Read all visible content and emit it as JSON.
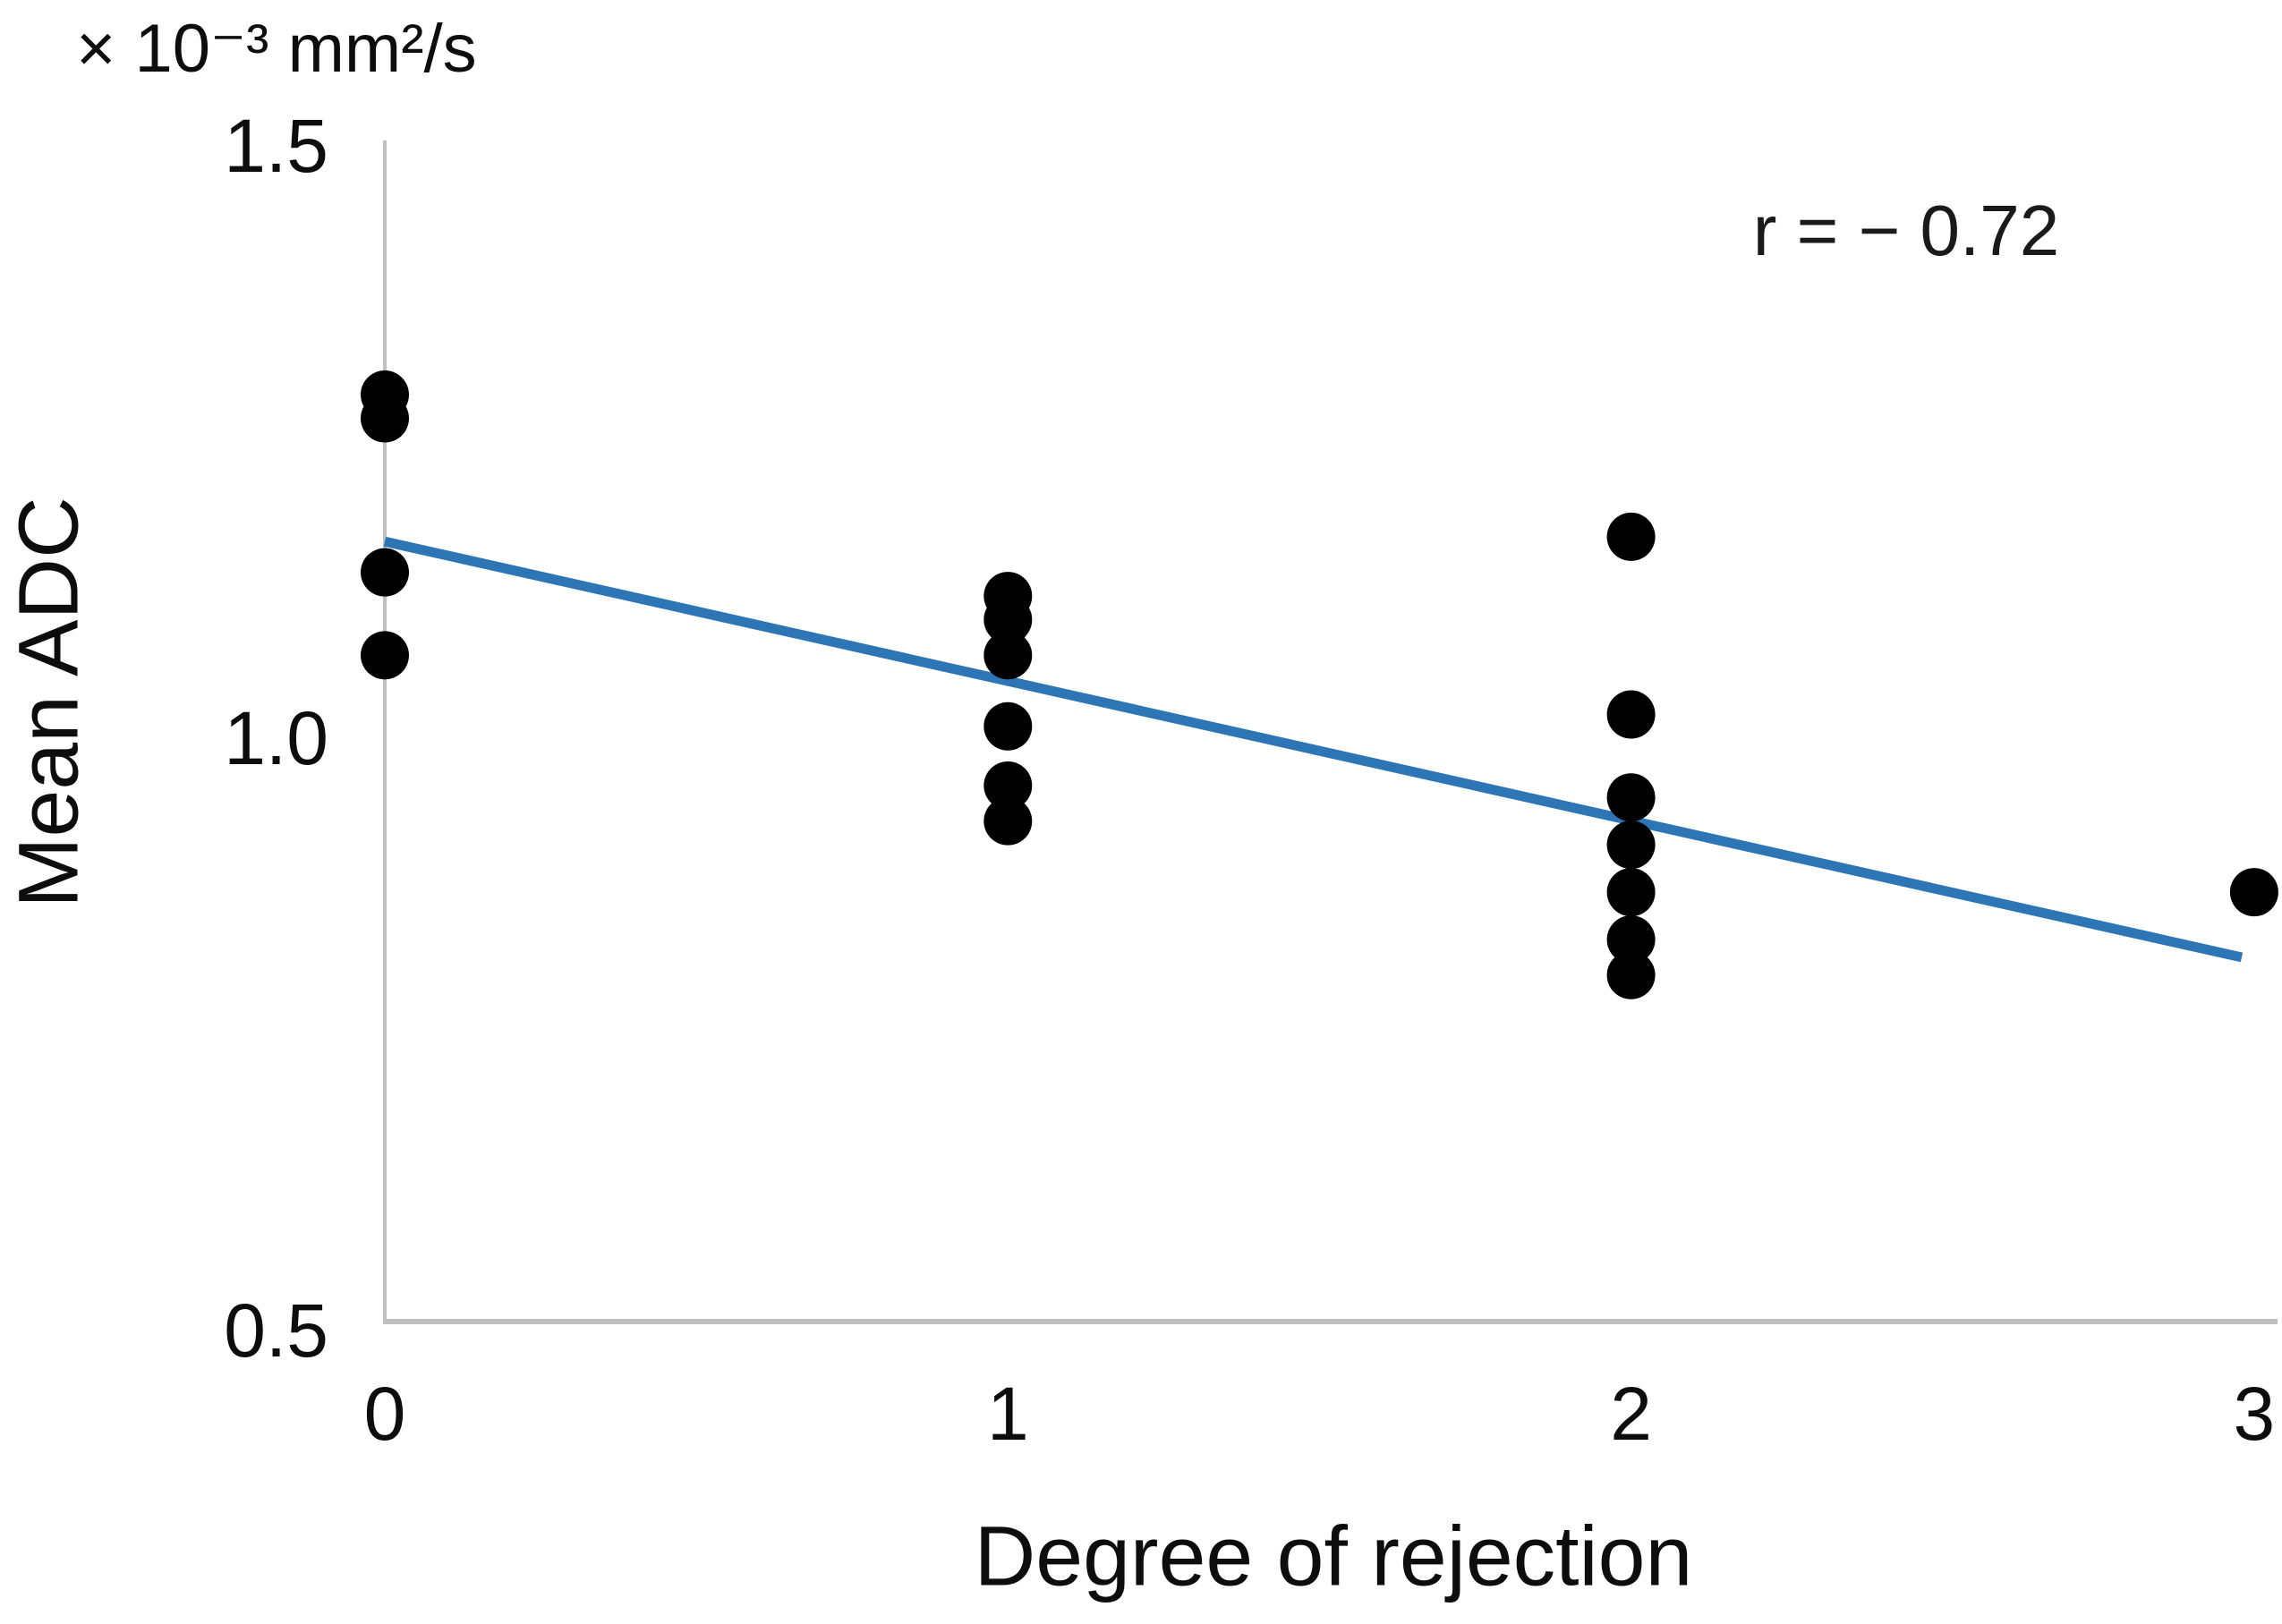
{
  "figure": {
    "y_unit_label": "× 10⁻³ mm²/s",
    "annotation": "r = − 0.72",
    "y_axis_title": "Mean ADC",
    "x_axis_title": "Degree of rejection"
  },
  "colors": {
    "trendline_blue": "#2E75B6",
    "axis_gray": "#BFBFBF",
    "marker_black": "#000000",
    "text_dark": "#0d0d0d"
  },
  "chart_data": {
    "type": "scatter",
    "title": "",
    "xlabel": "Degree of rejection",
    "ylabel": "Mean ADC",
    "y_unit_label": "× 10⁻³ mm²/s",
    "annotation": "r = − 0.72",
    "xlim": [
      0,
      3
    ],
    "ylim": [
      0.5,
      1.5
    ],
    "grid": false,
    "legend": "none",
    "x_ticks": [
      {
        "value": 0,
        "label": "0"
      },
      {
        "value": 1,
        "label": "1"
      },
      {
        "value": 2,
        "label": "2"
      },
      {
        "value": 3,
        "label": "3"
      }
    ],
    "y_ticks": [
      {
        "value": 1.5,
        "label": "1.5"
      },
      {
        "value": 1.0,
        "label": "1.0"
      },
      {
        "value": 0.5,
        "label": "0.5"
      }
    ],
    "series": [
      {
        "name": "mean-adc-points",
        "marker": "circle",
        "color": "#000000",
        "points": [
          {
            "x": 0,
            "y": 1.29
          },
          {
            "x": 0,
            "y": 1.27
          },
          {
            "x": 0,
            "y": 1.14
          },
          {
            "x": 0,
            "y": 1.07
          },
          {
            "x": 1,
            "y": 1.12
          },
          {
            "x": 1,
            "y": 1.1
          },
          {
            "x": 1,
            "y": 1.07
          },
          {
            "x": 1,
            "y": 1.01
          },
          {
            "x": 1,
            "y": 0.96
          },
          {
            "x": 1,
            "y": 0.93
          },
          {
            "x": 2,
            "y": 1.17
          },
          {
            "x": 2,
            "y": 1.02
          },
          {
            "x": 2,
            "y": 0.95
          },
          {
            "x": 2,
            "y": 0.91
          },
          {
            "x": 2,
            "y": 0.87
          },
          {
            "x": 2,
            "y": 0.83
          },
          {
            "x": 2,
            "y": 0.8
          },
          {
            "x": 3,
            "y": 0.87
          }
        ]
      }
    ],
    "trendline": {
      "x1": 0,
      "y1": 1.166,
      "x2": 2.98,
      "y2": 0.815,
      "color": "#2E75B6"
    }
  }
}
